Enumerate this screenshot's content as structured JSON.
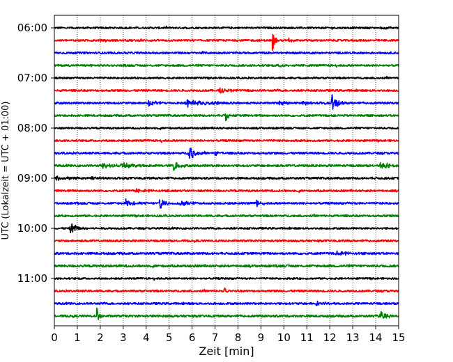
{
  "chart_data": {
    "type": "line",
    "title": "",
    "xlabel": "Zeit  [min]",
    "ylabel": "UTC (Lokalzeit = UTC + 01:00)",
    "xlim": [
      0,
      15
    ],
    "x_ticks": [
      0,
      1,
      2,
      3,
      4,
      5,
      6,
      7,
      8,
      9,
      10,
      11,
      12,
      13,
      14,
      15
    ],
    "y_tick_labels": [
      "06:00",
      "07:00",
      "08:00",
      "09:00",
      "10:00",
      "11:00"
    ],
    "y_tick_trace_index": [
      0,
      4,
      8,
      12,
      16,
      20
    ],
    "grid_x": true,
    "grid_style": "dotted",
    "series_colors": [
      "#000000",
      "#ff0000",
      "#0000ff",
      "#008000"
    ],
    "trace_minutes": 15,
    "traces": [
      {
        "start": "06:00",
        "color": "#000000",
        "noise": 0.9,
        "events": [
          [
            14.2,
            3,
            0.35
          ]
        ]
      },
      {
        "start": "06:15",
        "color": "#ff0000",
        "noise": 1.0,
        "events": [
          [
            9.5,
            16,
            0.1
          ],
          [
            10.2,
            3,
            0.25
          ]
        ]
      },
      {
        "start": "06:30",
        "color": "#0000ff",
        "noise": 1.0,
        "events": []
      },
      {
        "start": "06:45",
        "color": "#008000",
        "noise": 1.0,
        "events": [
          [
            9.8,
            2.5,
            0.3
          ]
        ]
      },
      {
        "start": "07:00",
        "color": "#000000",
        "noise": 0.9,
        "events": []
      },
      {
        "start": "07:15",
        "color": "#ff0000",
        "noise": 1.0,
        "events": [
          [
            7.2,
            3,
            0.4
          ]
        ]
      },
      {
        "start": "07:30",
        "color": "#0000ff",
        "noise": 1.0,
        "events": [
          [
            4.1,
            5,
            0.25
          ],
          [
            5.8,
            6,
            0.7
          ],
          [
            9.8,
            2.5,
            0.3
          ],
          [
            10.8,
            3,
            0.4
          ],
          [
            12.1,
            12,
            0.2
          ]
        ]
      },
      {
        "start": "07:45",
        "color": "#008000",
        "noise": 1.0,
        "events": [
          [
            7.45,
            12,
            0.12
          ]
        ]
      },
      {
        "start": "08:00",
        "color": "#000000",
        "noise": 0.9,
        "events": []
      },
      {
        "start": "08:15",
        "color": "#ff0000",
        "noise": 1.0,
        "events": []
      },
      {
        "start": "08:30",
        "color": "#0000ff",
        "noise": 1.0,
        "events": [
          [
            5.85,
            14,
            0.2
          ],
          [
            7.0,
            4,
            0.15
          ]
        ]
      },
      {
        "start": "08:45",
        "color": "#008000",
        "noise": 1.1,
        "events": [
          [
            2.1,
            3,
            0.5
          ],
          [
            2.9,
            5,
            0.5
          ],
          [
            5.2,
            12,
            0.15
          ],
          [
            14.2,
            3.5,
            0.8
          ]
        ]
      },
      {
        "start": "09:00",
        "color": "#000000",
        "noise": 1.0,
        "events": [
          [
            0.1,
            4,
            0.4
          ],
          [
            1.5,
            2,
            0.5
          ]
        ]
      },
      {
        "start": "09:15",
        "color": "#ff0000",
        "noise": 1.0,
        "events": [
          [
            3.6,
            3,
            0.5
          ]
        ]
      },
      {
        "start": "09:30",
        "color": "#0000ff",
        "noise": 1.0,
        "events": [
          [
            3.1,
            8,
            0.25
          ],
          [
            4.6,
            12,
            0.15
          ],
          [
            5.5,
            3,
            0.5
          ],
          [
            8.8,
            6,
            0.1
          ]
        ]
      },
      {
        "start": "09:45",
        "color": "#008000",
        "noise": 1.0,
        "events": []
      },
      {
        "start": "10:00",
        "color": "#000000",
        "noise": 0.9,
        "events": [
          [
            0.7,
            10,
            0.25
          ]
        ]
      },
      {
        "start": "10:15",
        "color": "#ff0000",
        "noise": 1.0,
        "events": []
      },
      {
        "start": "10:30",
        "color": "#0000ff",
        "noise": 1.1,
        "events": [
          [
            12.3,
            4,
            0.4
          ]
        ]
      },
      {
        "start": "10:45",
        "color": "#008000",
        "noise": 1.2,
        "events": []
      },
      {
        "start": "11:00",
        "color": "#000000",
        "noise": 0.9,
        "events": []
      },
      {
        "start": "11:15",
        "color": "#ff0000",
        "noise": 1.0,
        "events": [
          [
            7.4,
            5,
            0.15
          ]
        ]
      },
      {
        "start": "11:30",
        "color": "#0000ff",
        "noise": 1.0,
        "events": [
          [
            11.4,
            3,
            0.4
          ]
        ]
      },
      {
        "start": "11:45",
        "color": "#008000",
        "noise": 1.1,
        "events": [
          [
            1.85,
            12,
            0.1
          ],
          [
            14.2,
            6,
            0.3
          ]
        ]
      }
    ]
  }
}
